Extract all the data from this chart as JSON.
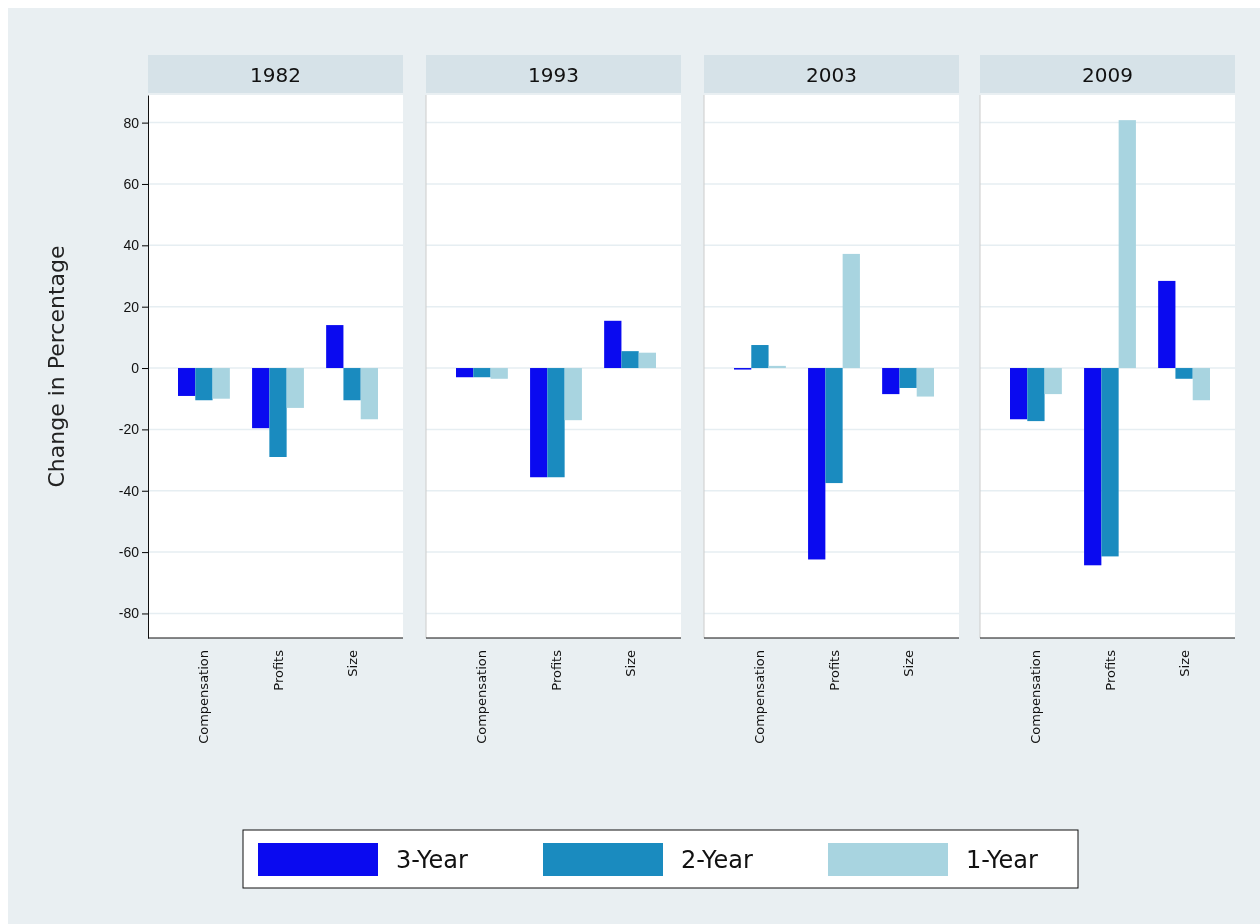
{
  "chart_data": [
    {
      "type": "bar",
      "title": "1982",
      "ylabel": "Change in Percentage",
      "categories": [
        "Compensation",
        "Profits",
        "Size"
      ],
      "ylim": [
        -88,
        89
      ],
      "yticks": [
        -80,
        -60,
        -40,
        -20,
        0,
        20,
        40,
        60,
        80
      ],
      "grid": "y",
      "legend": "bottom",
      "series": [
        {
          "name": "3-Year",
          "color": "#0a0af0",
          "values": [
            -9.1,
            -19.6,
            14
          ]
        },
        {
          "name": "2-Year",
          "color": "#1a8bbf",
          "values": [
            -10.5,
            -29,
            -10.5
          ]
        },
        {
          "name": "1-Year",
          "color": "#a8d4e0",
          "values": [
            -10,
            -13,
            -16.7
          ]
        }
      ]
    },
    {
      "type": "bar",
      "title": "1993",
      "categories": [
        "Compensation",
        "Profits",
        "Size"
      ],
      "ylim": [
        -88,
        89
      ],
      "grid": "y",
      "tick_labels": "x",
      "series": [
        {
          "color": "#0a0af0",
          "values": [
            -3,
            -35.6,
            15.4
          ]
        },
        {
          "color": "#1a8bbf",
          "values": [
            -3,
            -35.6,
            5.5
          ]
        },
        {
          "color": "#a8d4e0",
          "values": [
            -3.5,
            -17,
            5
          ]
        }
      ]
    },
    {
      "type": "bar",
      "title": "2003",
      "categories": [
        "Compensation",
        "Profits",
        "Size"
      ],
      "ylim": [
        -88,
        89
      ],
      "grid": "y",
      "tick_labels": "x",
      "series": [
        {
          "color": "#0a0af0",
          "values": [
            -0.5,
            -62.4,
            -8.5
          ]
        },
        {
          "color": "#1a8bbf",
          "values": [
            7.5,
            -37.5,
            -6.5
          ]
        },
        {
          "color": "#a8d4e0",
          "values": [
            0.7,
            37.2,
            -9.3
          ]
        }
      ]
    },
    {
      "type": "bar",
      "title": "2009",
      "categories": [
        "Compensation",
        "Profits",
        "Size"
      ],
      "ylim": [
        -88,
        89
      ],
      "grid": "y",
      "tick_labels": "x",
      "series": [
        {
          "color": "#0a0af0",
          "values": [
            -16.7,
            -64.3,
            28.4
          ]
        },
        {
          "color": "#1a8bbf",
          "values": [
            -17.3,
            -61.4,
            -3.5
          ]
        },
        {
          "color": "#a8d4e0",
          "values": [
            -8.5,
            80.8,
            -10.5
          ]
        }
      ]
    }
  ]
}
